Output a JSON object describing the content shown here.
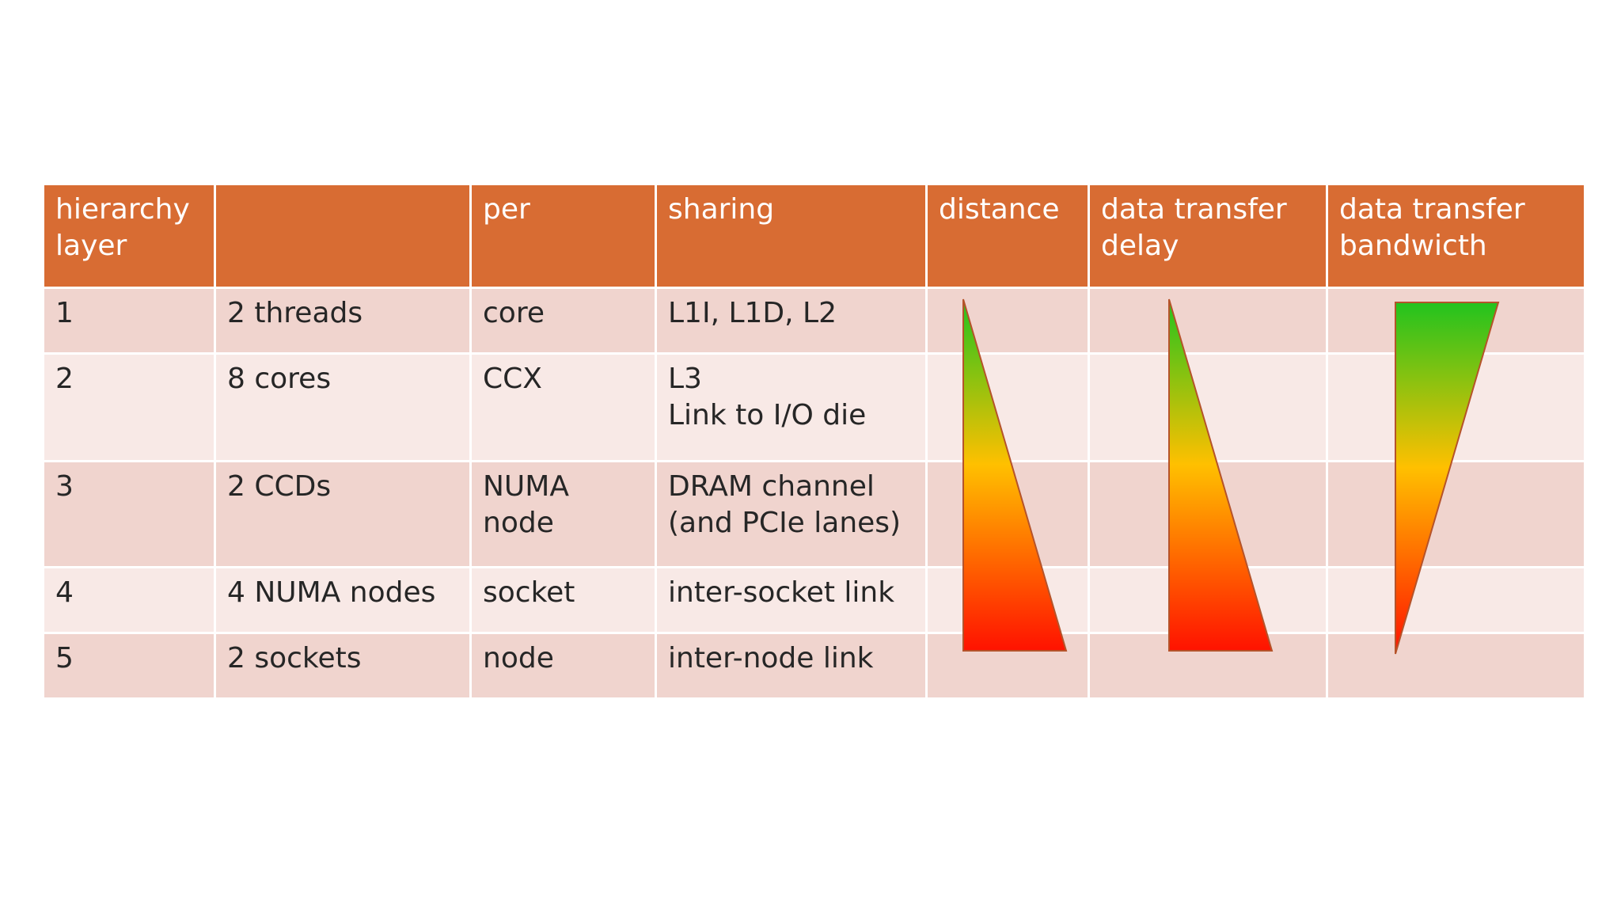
{
  "table": {
    "headers": [
      "hierarchy\nlayer",
      "",
      "per",
      "sharing",
      "distance",
      "data transfer\ndelay",
      "data transfer\nbandwicth"
    ],
    "rows": [
      {
        "layer": "1",
        "unit": "2 threads",
        "per": "core",
        "sharing": "L1I, L1D, L2"
      },
      {
        "layer": "2",
        "unit": "8 cores",
        "per": "CCX",
        "sharing": "L3\nLink to I/O die"
      },
      {
        "layer": "3",
        "unit": "2 CCDs",
        "per": "NUMA node",
        "sharing": "DRAM channel\n(and PCIe lanes)"
      },
      {
        "layer": "4",
        "unit": "4 NUMA nodes",
        "per": "socket",
        "sharing": "inter-socket link"
      },
      {
        "layer": "5",
        "unit": "2 sockets",
        "per": "node",
        "sharing": "inter-node link"
      }
    ]
  },
  "colors": {
    "header_bg": "#d86c33",
    "row_odd_bg": "#f0d4ce",
    "row_even_bg": "#f8e9e6",
    "gradient_green": "#22c31e",
    "gradient_yellow": "#ffc000",
    "gradient_red": "#ff1200",
    "wedge_outline": "#b5532a"
  },
  "indicators": {
    "distance": "increasing",
    "data_transfer_delay": "increasing",
    "data_transfer_bandwidth": "decreasing"
  }
}
